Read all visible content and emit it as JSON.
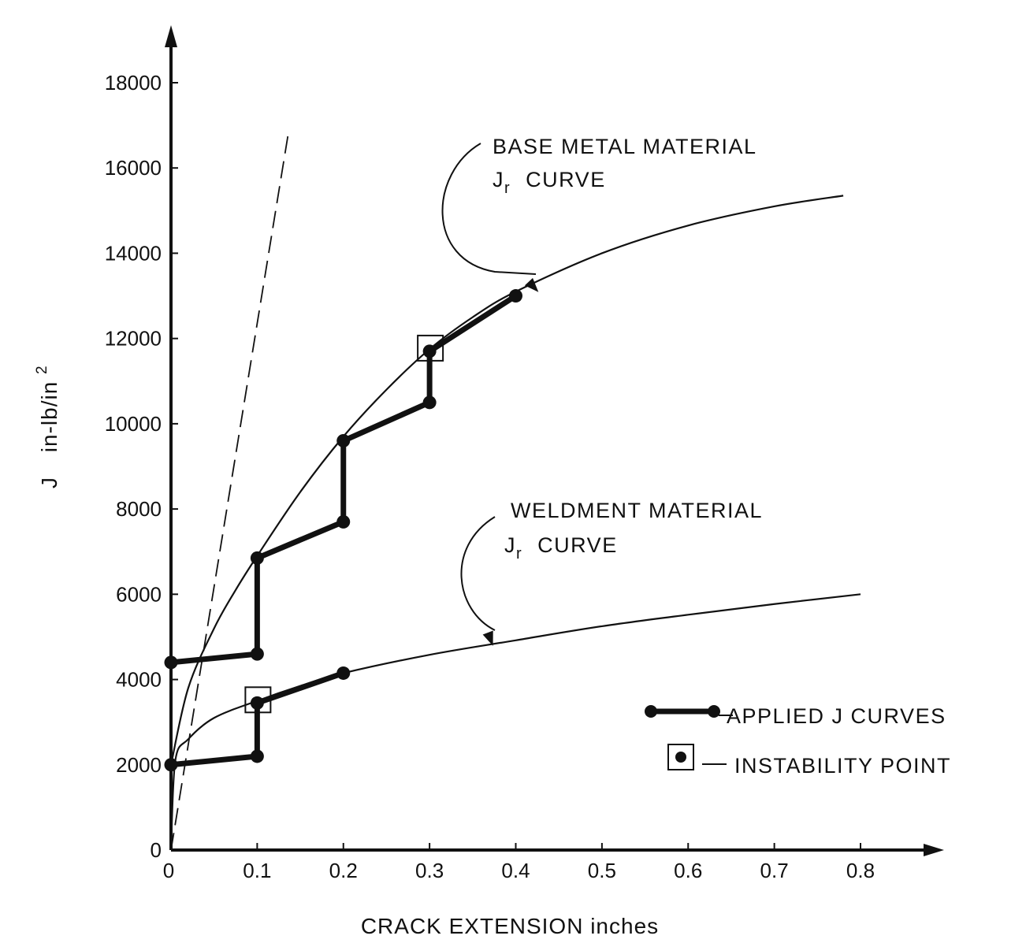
{
  "chart_data": {
    "type": "line",
    "title": "",
    "xlabel": "CRACK EXTENSION inches",
    "ylabel_main": "J",
    "ylabel_units_prefix": "in-lb/in",
    "ylabel_units_sup": "2",
    "xlim": [
      0,
      0.8
    ],
    "ylim": [
      0,
      18000
    ],
    "x_ticks": [
      "0",
      "0.1",
      "0.2",
      "0.3",
      "0.4",
      "0.5",
      "0.6",
      "0.7",
      "0.8"
    ],
    "y_ticks": [
      "0",
      "2000",
      "4000",
      "6000",
      "8000",
      "10000",
      "12000",
      "14000",
      "16000",
      "18000"
    ],
    "grid": false,
    "series": [
      {
        "name": "BASE METAL MATERIAL Jr CURVE",
        "style": "thin",
        "x": [
          0,
          0.02,
          0.05,
          0.075,
          0.1,
          0.15,
          0.2,
          0.25,
          0.3,
          0.35,
          0.4,
          0.5,
          0.6,
          0.7,
          0.78
        ],
        "y": [
          2000,
          3800,
          5200,
          6100,
          6900,
          8400,
          9700,
          10800,
          11750,
          12500,
          13100,
          14000,
          14650,
          15100,
          15350
        ]
      },
      {
        "name": "WELDMENT MATERIAL Jr CURVE",
        "style": "thin",
        "x": [
          0,
          0.005,
          0.02,
          0.05,
          0.1,
          0.15,
          0.2,
          0.3,
          0.4,
          0.5,
          0.6,
          0.7,
          0.8
        ],
        "y": [
          0,
          2100,
          2600,
          3100,
          3500,
          3850,
          4150,
          4580,
          4920,
          5250,
          5520,
          5770,
          6000
        ]
      },
      {
        "name": "dashed reference line",
        "style": "dashed",
        "x": [
          0,
          0.136
        ],
        "y": [
          0,
          16800
        ]
      },
      {
        "name": "APPLIED J CURVES (base metal)",
        "style": "applied",
        "x": [
          0,
          0.1,
          0.1,
          0.2,
          0.2,
          0.3,
          0.3,
          0.4
        ],
        "y": [
          4400,
          4600,
          6850,
          7700,
          9600,
          10500,
          11700,
          13000
        ]
      },
      {
        "name": "APPLIED J CURVES (weldment)",
        "style": "applied",
        "x": [
          0,
          0.1,
          0.1,
          0.2
        ],
        "y": [
          2000,
          2200,
          3450,
          4150
        ]
      }
    ],
    "instability_points": [
      {
        "x": 0.3,
        "y": 11700
      },
      {
        "x": 0.1,
        "y": 3450
      }
    ],
    "annotations": [
      {
        "lines": [
          "BASE METAL MATERIAL",
          "J|r| CURVE"
        ],
        "points_to": {
          "x": 0.43,
          "y": 13200
        }
      },
      {
        "lines": [
          "WELDMENT MATERIAL",
          "J|r| CURVE"
        ],
        "points_to": {
          "x": 0.39,
          "y": 4900
        }
      }
    ],
    "legend": {
      "position": "bottom-right",
      "entries": [
        {
          "marker": "line-with-dots",
          "label": "APPLIED J CURVES"
        },
        {
          "marker": "boxed-dot",
          "label": "INSTABILITY POINT"
        }
      ]
    },
    "colors": {
      "ink": "#111111",
      "background": "#ffffff"
    }
  }
}
